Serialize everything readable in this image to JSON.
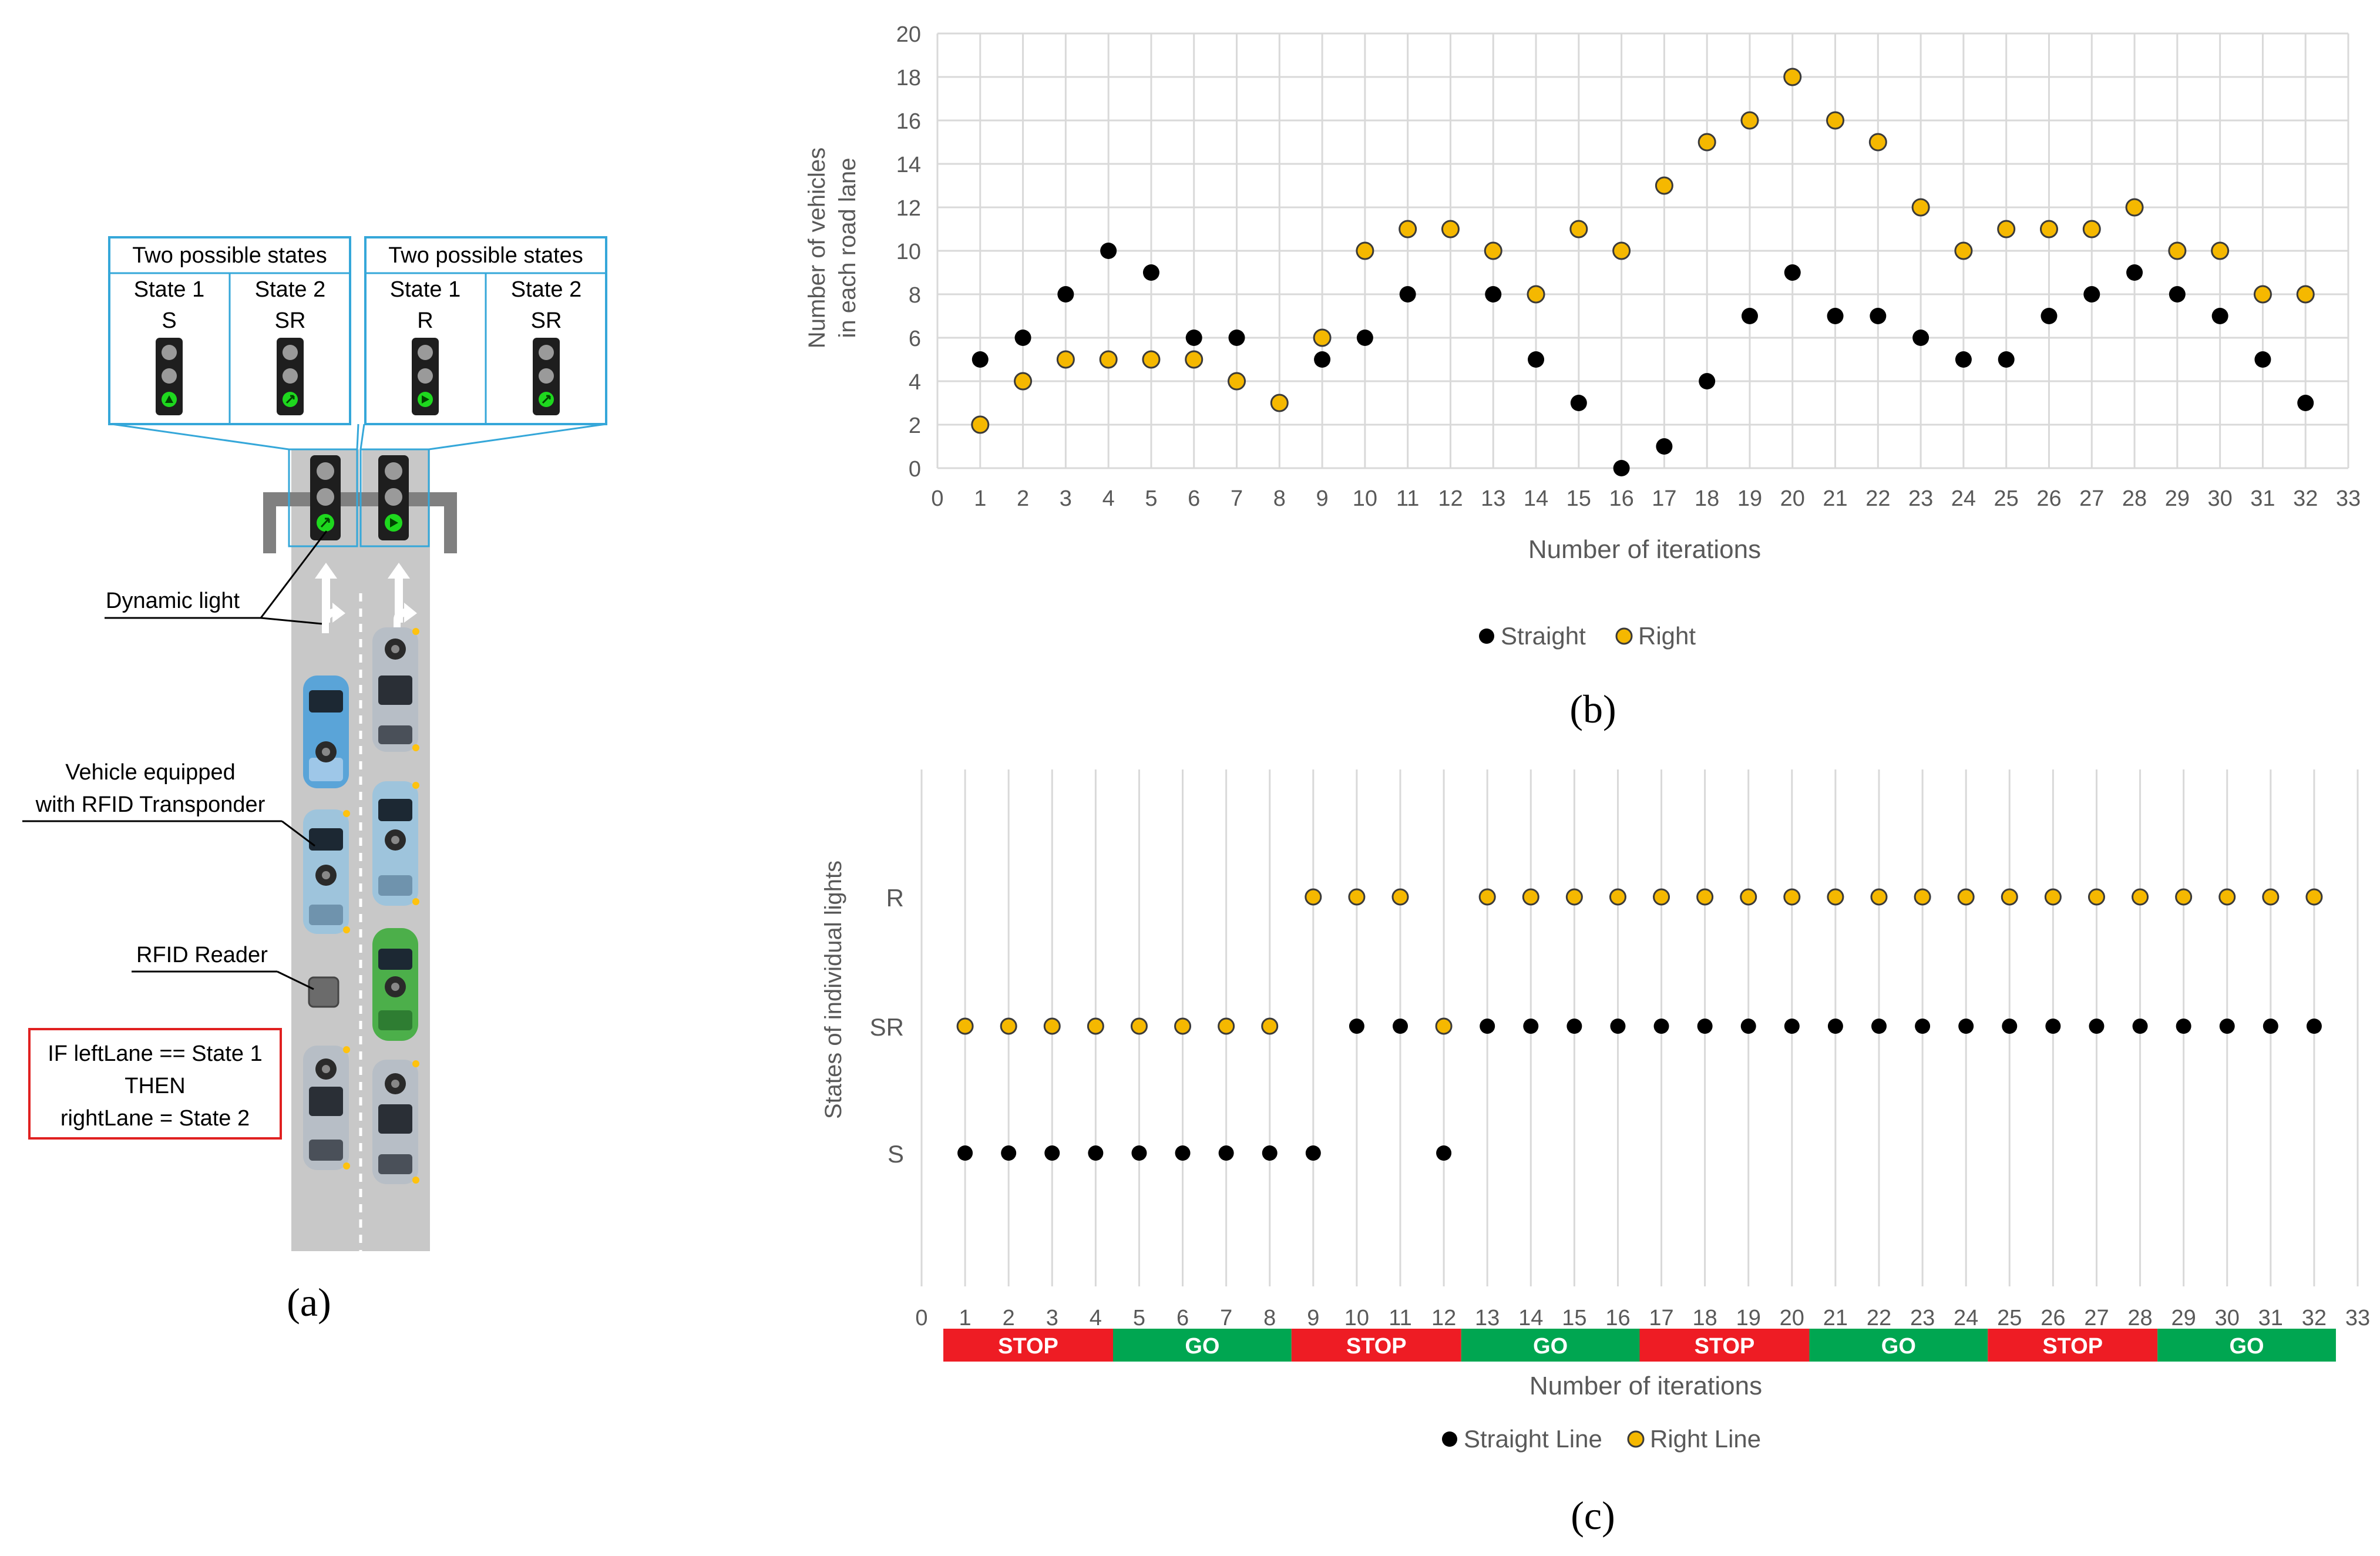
{
  "panel_a": {
    "caption": "(a)",
    "states_box_left": {
      "title": "Two possible states",
      "state1": "State 1",
      "state2": "State 2",
      "value1": "S",
      "value2": "SR"
    },
    "states_box_right": {
      "title": "Two possible states",
      "state1": "State 1",
      "state2": "State 2",
      "value1": "R",
      "value2": "SR"
    },
    "label_dynamic_light": "Dynamic light",
    "label_vehicle_line1": "Vehicle equipped",
    "label_vehicle_line2": "with RFID Transponder",
    "label_rfid_reader": "RFID Reader",
    "rule_line1": "IF leftLane == State 1",
    "rule_line2": "THEN",
    "rule_line3": "rightLane = State 2",
    "colors": {
      "light_green": "#1ed81e",
      "box_border": "#35a7d9",
      "rule_border": "#e02020",
      "road": "#c8c8c8"
    }
  },
  "chart_data": [
    {
      "id": "b",
      "type": "scatter",
      "caption": "(b)",
      "title": "",
      "xlabel": "Number of iterations",
      "ylabel_line1": "Number of vehicles",
      "ylabel_line2": "in each road lane",
      "xlim": [
        0,
        33
      ],
      "ylim": [
        0,
        20
      ],
      "xticks": [
        "0",
        "1",
        "2",
        "3",
        "4",
        "5",
        "6",
        "7",
        "8",
        "9",
        "10",
        "11",
        "12",
        "13",
        "14",
        "15",
        "16",
        "17",
        "18",
        "19",
        "20",
        "21",
        "22",
        "23",
        "24",
        "25",
        "26",
        "27",
        "28",
        "29",
        "30",
        "31",
        "32",
        "33"
      ],
      "yticks": [
        "0",
        "2",
        "4",
        "6",
        "8",
        "10",
        "12",
        "14",
        "16",
        "18",
        "20"
      ],
      "grid": true,
      "legend": "bottom",
      "x": [
        1,
        2,
        3,
        4,
        5,
        6,
        7,
        8,
        9,
        10,
        11,
        12,
        13,
        14,
        15,
        16,
        17,
        18,
        19,
        20,
        21,
        22,
        23,
        24,
        25,
        26,
        27,
        28,
        29,
        30,
        31,
        32
      ],
      "series": [
        {
          "name": "Straight",
          "color": "#000000",
          "values": [
            5,
            6,
            8,
            10,
            9,
            6,
            6,
            3,
            5,
            6,
            8,
            11,
            8,
            5,
            3,
            0,
            1,
            4,
            7,
            9,
            7,
            7,
            6,
            5,
            5,
            7,
            8,
            9,
            8,
            7,
            5,
            3
          ]
        },
        {
          "name": "Right",
          "color": "#f5b800",
          "values": [
            2,
            4,
            5,
            5,
            5,
            5,
            4,
            3,
            6,
            10,
            11,
            11,
            10,
            8,
            11,
            10,
            13,
            15,
            16,
            18,
            16,
            15,
            12,
            10,
            11,
            11,
            11,
            12,
            10,
            10,
            8,
            8
          ]
        }
      ]
    },
    {
      "id": "c",
      "type": "scatter",
      "caption": "(c)",
      "title": "",
      "xlabel": "Number of iterations",
      "ylabel": "States of individual lights",
      "xlim": [
        0,
        33
      ],
      "categories_y": [
        "S",
        "SR",
        "R"
      ],
      "xticks": [
        "0",
        "1",
        "2",
        "3",
        "4",
        "5",
        "6",
        "7",
        "8",
        "9",
        "10",
        "11",
        "12",
        "13",
        "14",
        "15",
        "16",
        "17",
        "18",
        "19",
        "20",
        "21",
        "22",
        "23",
        "24",
        "25",
        "26",
        "27",
        "28",
        "29",
        "30",
        "31",
        "32",
        "33"
      ],
      "grid": true,
      "legend": "bottom",
      "x": [
        1,
        2,
        3,
        4,
        5,
        6,
        7,
        8,
        9,
        10,
        11,
        12,
        13,
        14,
        15,
        16,
        17,
        18,
        19,
        20,
        21,
        22,
        23,
        24,
        25,
        26,
        27,
        28,
        29,
        30,
        31,
        32
      ],
      "series": [
        {
          "name": "Straight Line",
          "color": "#000000",
          "values": [
            "S",
            "S",
            "S",
            "S",
            "S",
            "S",
            "S",
            "S",
            "S",
            "SR",
            "SR",
            "S",
            "SR",
            "SR",
            "SR",
            "SR",
            "SR",
            "SR",
            "SR",
            "SR",
            "SR",
            "SR",
            "SR",
            "SR",
            "SR",
            "SR",
            "SR",
            "SR",
            "SR",
            "SR",
            "SR",
            "SR"
          ]
        },
        {
          "name": "Right Line",
          "color": "#f5b800",
          "values": [
            "SR",
            "SR",
            "SR",
            "SR",
            "SR",
            "SR",
            "SR",
            "SR",
            "R",
            "R",
            "R",
            "SR",
            "R",
            "R",
            "R",
            "R",
            "R",
            "R",
            "R",
            "R",
            "R",
            "R",
            "R",
            "R",
            "R",
            "R",
            "R",
            "R",
            "R",
            "R",
            "R",
            "R"
          ]
        }
      ],
      "phases": [
        {
          "label": "STOP",
          "start": 0.5,
          "end": 4.4,
          "color": "#ee1c24"
        },
        {
          "label": "GO",
          "start": 4.4,
          "end": 8.5,
          "color": "#00a651"
        },
        {
          "label": "STOP",
          "start": 8.5,
          "end": 12.4,
          "color": "#ee1c24"
        },
        {
          "label": "GO",
          "start": 12.4,
          "end": 16.5,
          "color": "#00a651"
        },
        {
          "label": "STOP",
          "start": 16.5,
          "end": 20.4,
          "color": "#ee1c24"
        },
        {
          "label": "GO",
          "start": 20.4,
          "end": 24.5,
          "color": "#00a651"
        },
        {
          "label": "STOP",
          "start": 24.5,
          "end": 28.4,
          "color": "#ee1c24"
        },
        {
          "label": "GO",
          "start": 28.4,
          "end": 32.5,
          "color": "#00a651"
        }
      ]
    }
  ]
}
